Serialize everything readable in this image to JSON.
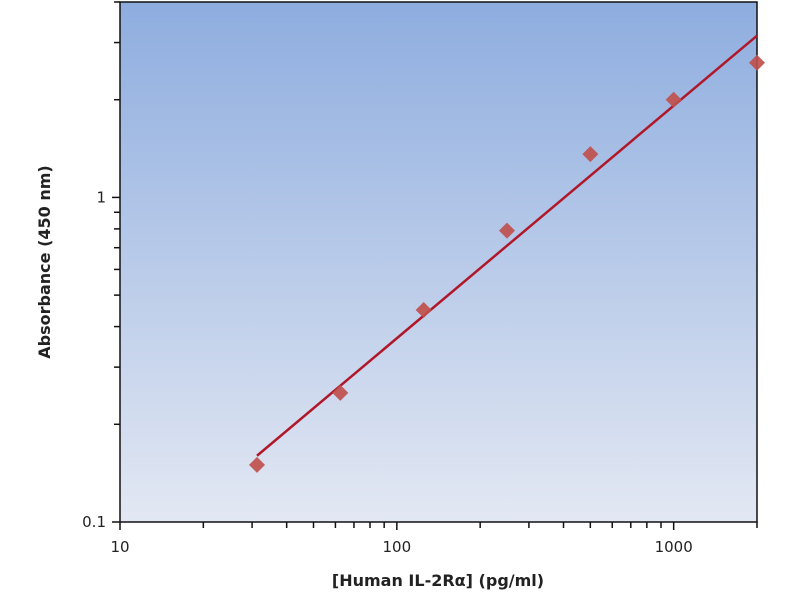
{
  "chart_data": {
    "type": "scatter",
    "title": "",
    "xlabel": "[Human IL-2Rα] (pg/ml)",
    "ylabel": "Absorbance (450 nm)",
    "xscale": "log",
    "yscale": "log",
    "xlim": [
      10,
      2000
    ],
    "ylim": [
      0.1,
      4
    ],
    "x_ticks": [
      {
        "value": 10,
        "label": "10"
      },
      {
        "value": 100,
        "label": "100"
      },
      {
        "value": 1000,
        "label": "1000"
      }
    ],
    "y_ticks": [
      {
        "value": 0.1,
        "label": "0.1"
      },
      {
        "value": 1,
        "label": "1"
      }
    ],
    "grid": false,
    "legend": "none",
    "series": [
      {
        "marker": "diamond",
        "color": "#c0504d",
        "x": [
          31.25,
          62.5,
          125,
          250,
          500,
          1000,
          2000
        ],
        "y": [
          0.15,
          0.25,
          0.45,
          0.79,
          1.36,
          2.0,
          2.6
        ]
      }
    ],
    "fit_line": {
      "color": "#b0182a",
      "x": [
        31.25,
        2000
      ],
      "y": [
        0.16,
        3.15
      ]
    },
    "background_gradient": [
      "#8eaddf",
      "#e3e8f3"
    ]
  }
}
